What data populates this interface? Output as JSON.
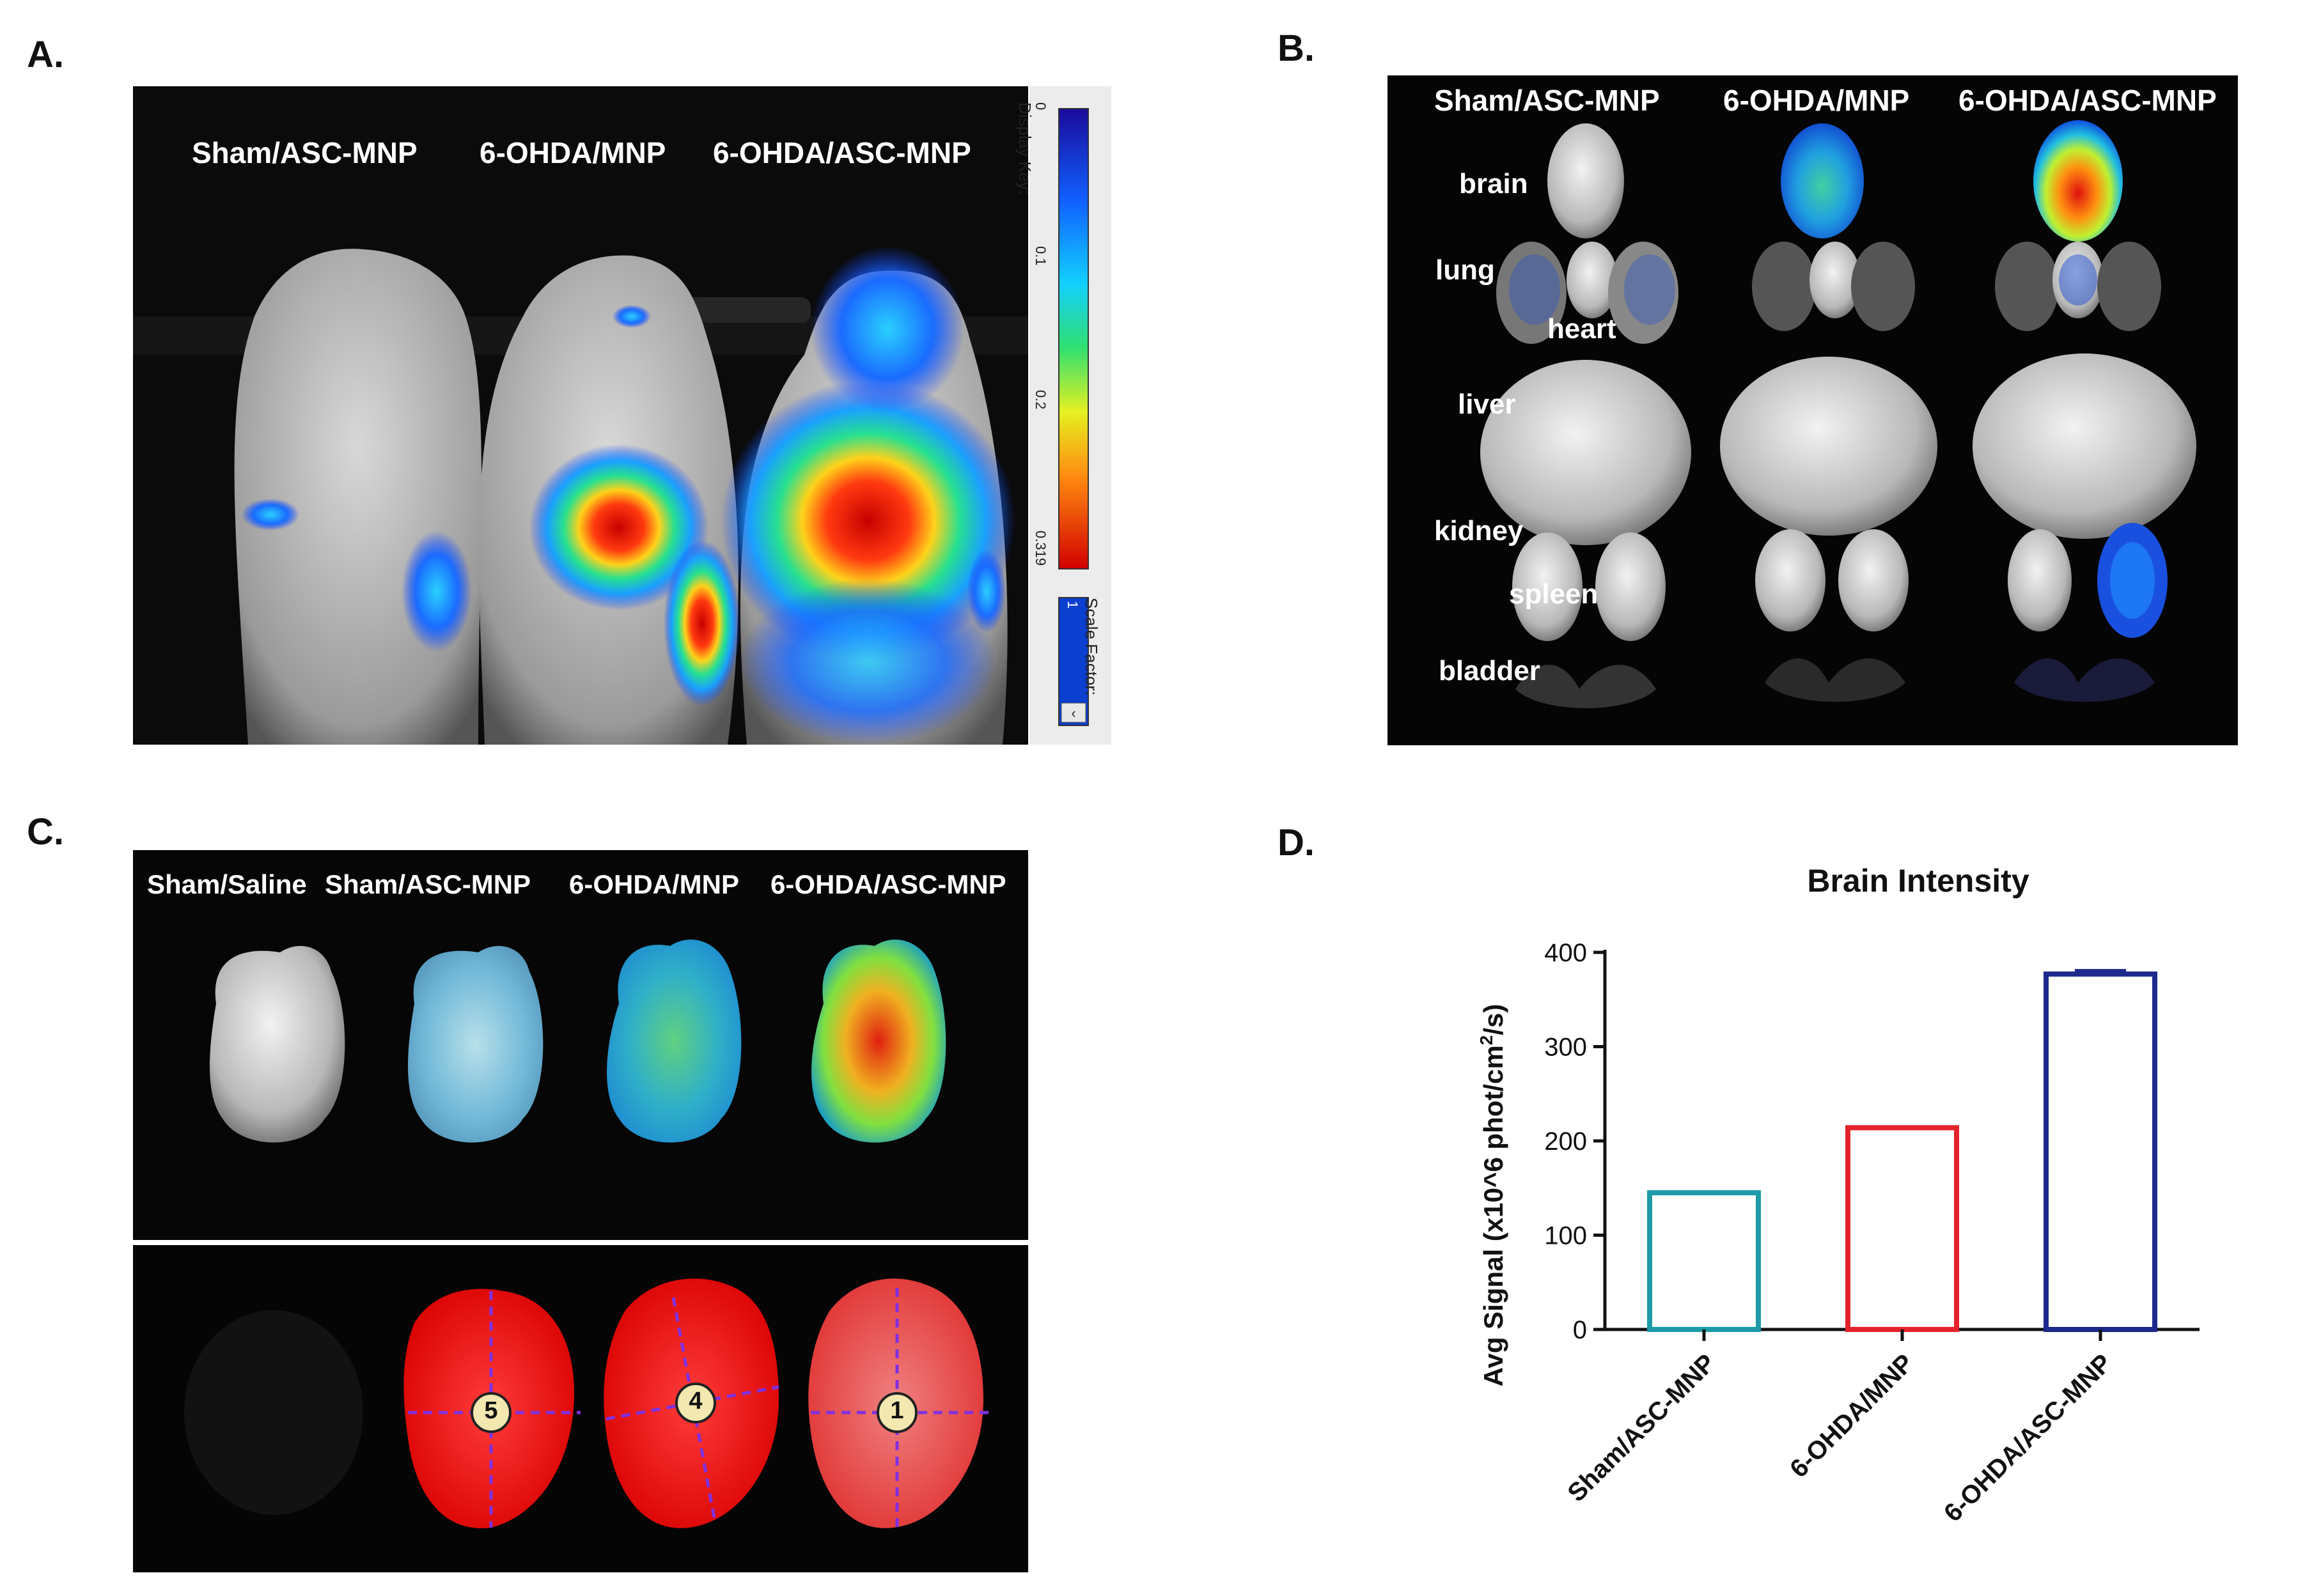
{
  "panels": {
    "A": {
      "letter": "A.",
      "labels": [
        "Sham/ASC-MNP",
        "6-OHDA/MNP",
        "6-OHDA/ASC-MNP"
      ],
      "display_key_label": "Display Key:",
      "scale_ticks": [
        "0",
        "0.1",
        "0.2",
        "0.319"
      ],
      "scale_factor_label": "Scale Factor:",
      "scale_factor_value": "1"
    },
    "B": {
      "letter": "B.",
      "labels": [
        "Sham/ASC-MNP",
        "6-OHDA/MNP",
        "6-OHDA/ASC-MNP"
      ],
      "organs": {
        "brain": "brain",
        "lung": "lung",
        "heart": "heart",
        "liver": "liver",
        "kidney": "kidney",
        "spleen": "spleen",
        "bladder": "bladder"
      }
    },
    "C": {
      "letter": "C.",
      "labels": [
        "Sham/Saline",
        "Sham/ASC-MNP",
        "6-OHDA/MNP",
        "6-OHDA/ASC-MNP"
      ],
      "roi_numbers": [
        "5",
        "4",
        "1"
      ]
    },
    "D": {
      "letter": "D."
    }
  },
  "chart_data": {
    "type": "bar",
    "title": "Brain Intensity",
    "ylabel": "Avg Signal (x10^6 phot/cm²/s)",
    "ylabel_parts": {
      "main": "Avg Signal (x10^6 phot/cm",
      "sup": "2",
      "tail": "/s)"
    },
    "xlabel": "",
    "categories": [
      "Sham/ASC-MNP",
      "6-OHDA/MNP",
      "6-OHDA/ASC-MNP"
    ],
    "values": [
      145,
      214,
      377
    ],
    "errors": [
      0,
      0,
      4
    ],
    "colors": [
      "#1e9aa8",
      "#e4232b",
      "#1d2a8c"
    ],
    "ylim": [
      0,
      400
    ],
    "yticks": [
      0,
      100,
      200,
      300,
      400
    ]
  }
}
